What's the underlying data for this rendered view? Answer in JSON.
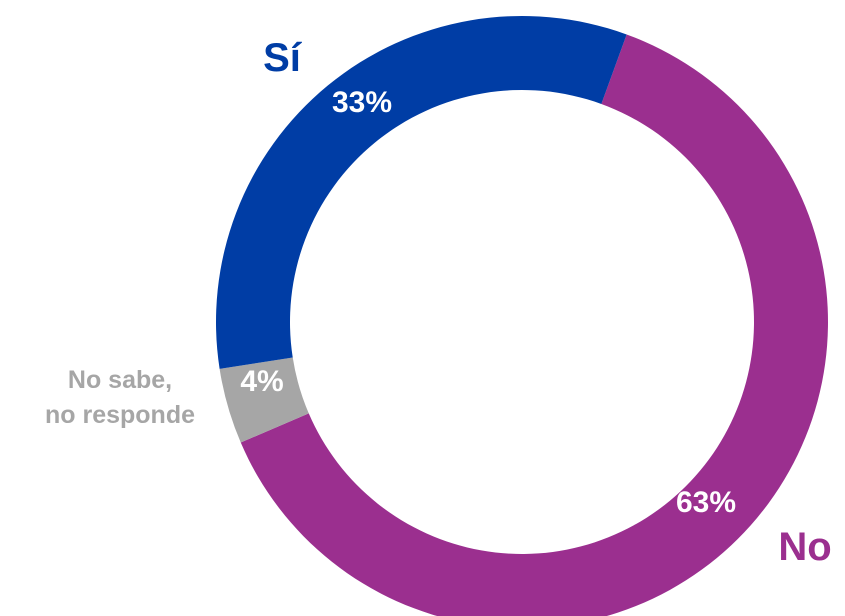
{
  "chart_data": {
    "type": "pie",
    "donut": true,
    "slices": [
      {
        "label": "Sí",
        "value": 33,
        "value_label": "33%",
        "color": "#003DA5"
      },
      {
        "label": "No",
        "value": 63,
        "value_label": "63%",
        "color": "#9B2F8F"
      },
      {
        "label": "No sabe, no responde",
        "label_lines": [
          "No sabe,",
          "no responde"
        ],
        "value": 4,
        "value_label": "4%",
        "color": "#A6A6A6"
      }
    ],
    "legend": "none"
  }
}
